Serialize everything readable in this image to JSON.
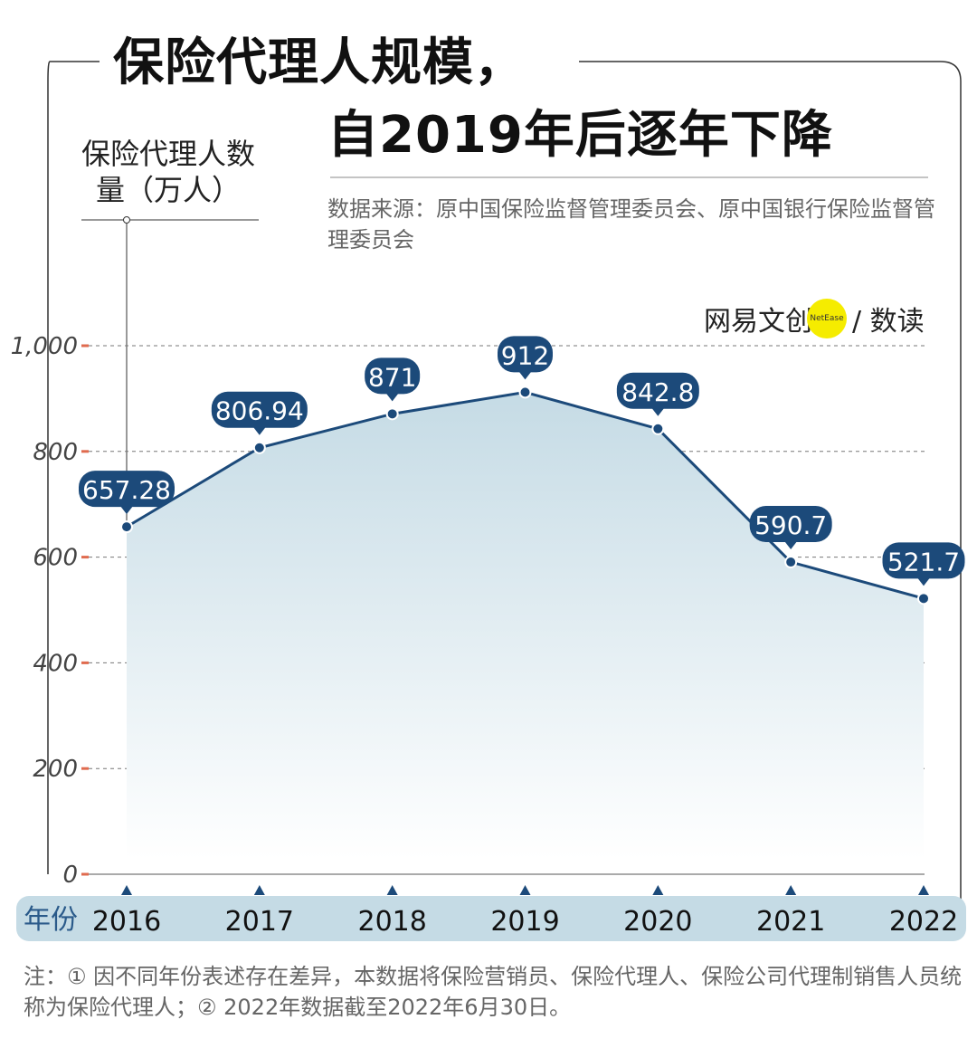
{
  "title_line1": "保险代理人规模，",
  "title_line2": "自2019年后逐年下降",
  "source": "数据来源：原中国保险监督管理委员会、原中国银行保险监督管理委员会",
  "logo": {
    "brand": "网易文创",
    "badge": "NetEase",
    "section": "/ 数读"
  },
  "note": "注：① 因不同年份表述存在差异，本数据将保险营销员、保险代理人、保险公司代理制销售人员统称为保险代理人；② 2022年数据截至2022年6月30日。",
  "colors": {
    "line": "#1c4a7a",
    "area": "#c5dbe5",
    "axis_band": "#c5dbe5",
    "tick": "#e06b4f"
  },
  "chart_data": {
    "type": "area",
    "title": "保险代理人规模，自2019年后逐年下降",
    "ylabel": "保险代理人数量（万人）",
    "xlabel": "年份",
    "categories": [
      "2016",
      "2017",
      "2018",
      "2019",
      "2020",
      "2021",
      "2022"
    ],
    "values": [
      657.28,
      806.94,
      871,
      912,
      842.8,
      590.7,
      521.7
    ],
    "data_labels": [
      "657.28",
      "806.94",
      "871",
      "912",
      "842.8",
      "590.7",
      "521.7"
    ],
    "ylim": [
      0,
      1000
    ],
    "yticks": [
      "0",
      "200",
      "400",
      "600",
      "800",
      "1,000"
    ],
    "grid": true
  }
}
